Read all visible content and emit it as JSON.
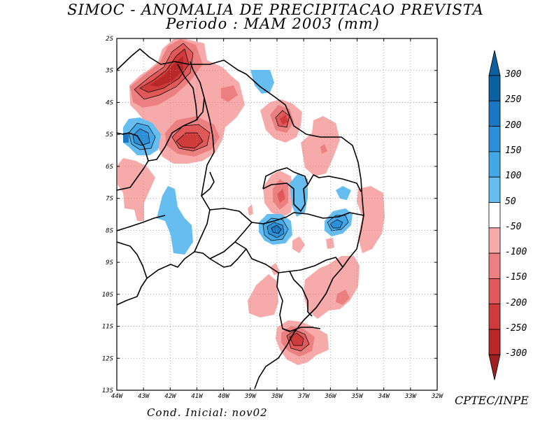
{
  "title": {
    "line1": "SIMOC -  ANOMALIA DE PRECIPITACAO PREVISTA",
    "line2": "Periodo : MAM 2003 (mm)"
  },
  "axes": {
    "lon_labels": [
      "44W",
      "43W",
      "42W",
      "41W",
      "40W",
      "39W",
      "38W",
      "37W",
      "36W",
      "35W",
      "34W",
      "33W",
      "32W"
    ],
    "lat_labels": [
      "2S",
      "3S",
      "4S",
      "5S",
      "6S",
      "7S",
      "8S",
      "9S",
      "10S",
      "11S",
      "12S",
      "13S"
    ]
  },
  "colorbar": {
    "labels": [
      "300",
      "250",
      "200",
      "150",
      "100",
      "50",
      "-50",
      "-100",
      "-150",
      "-200",
      "-250",
      "-300"
    ],
    "colors": [
      "#0c5fa0",
      "#1a78c2",
      "#2c90d8",
      "#44a8e6",
      "#66bef0",
      "#ffffff",
      "#f6aaaa",
      "#ec8080",
      "#e05858",
      "#cf3b3b",
      "#b82828"
    ]
  },
  "footer": {
    "credit": "CPTEC/INPE",
    "condition": "Cond. Inicial: nov02"
  }
}
